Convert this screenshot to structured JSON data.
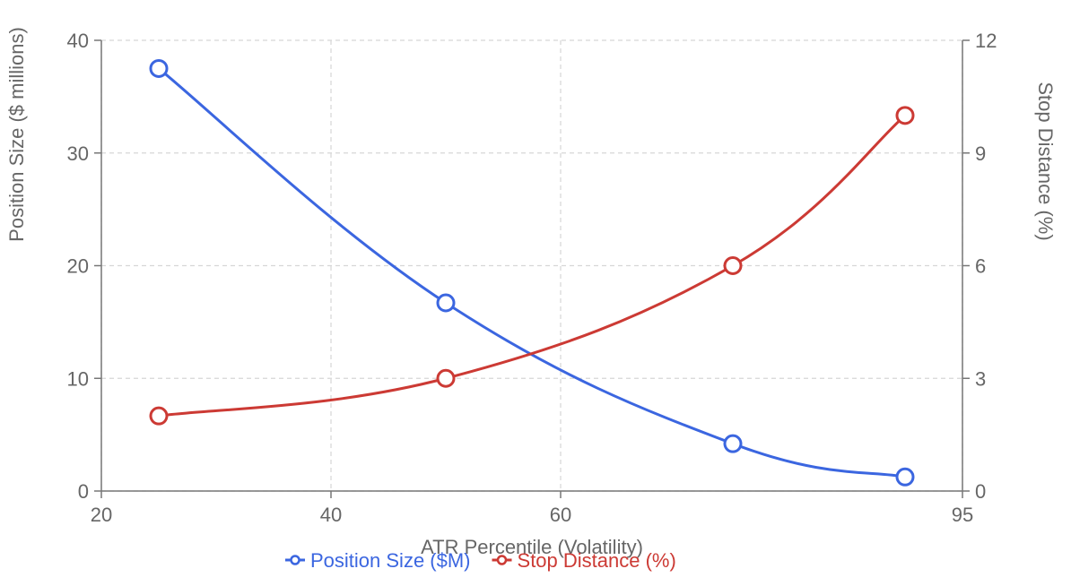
{
  "chart_data": {
    "type": "line",
    "x_label": "ATR Percentile (Volatility)",
    "y_label": "Position Size ($ millions)",
    "y2_label": "Stop Distance (%)",
    "x": [
      25,
      50,
      75,
      90
    ],
    "series": [
      {
        "name": "Position Size ($M)",
        "color": "#3b66e0",
        "values": [
          37.5,
          16.7,
          4.2,
          1.25
        ]
      },
      {
        "name": "Stop Distance (%)",
        "color": "#cc3a34",
        "axis": "y2",
        "values": [
          2,
          3,
          6,
          10
        ]
      }
    ],
    "xlim": [
      20,
      95
    ],
    "xticks": [
      20,
      40,
      60,
      95
    ],
    "ylim": [
      0,
      40
    ],
    "yticks": [
      0,
      10,
      20,
      30,
      40
    ],
    "y2lim": [
      0,
      12
    ],
    "y2ticks": [
      0,
      3,
      6,
      9,
      12
    ],
    "grid": true,
    "legend": "bottom"
  }
}
